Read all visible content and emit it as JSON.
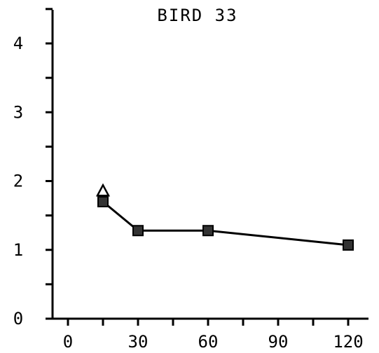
{
  "chart_data": {
    "type": "line",
    "title": "BIRD 33",
    "xlabel": "",
    "ylabel": "",
    "xlim": [
      0,
      120
    ],
    "ylim": [
      0,
      4.5
    ],
    "x_ticks": [
      0,
      30,
      60,
      90,
      120
    ],
    "y_ticks": [
      0,
      1,
      2,
      3,
      4
    ],
    "grid": false,
    "legend": "none",
    "series": [
      {
        "marker": "square",
        "x": [
          15,
          30,
          60,
          120
        ],
        "values": [
          1.7,
          1.28,
          1.28,
          1.07
        ]
      },
      {
        "marker": "triangle",
        "x": [
          15
        ],
        "values": [
          1.85
        ]
      }
    ],
    "colors": {
      "ink": "#000000",
      "background": "#ffffff"
    }
  }
}
